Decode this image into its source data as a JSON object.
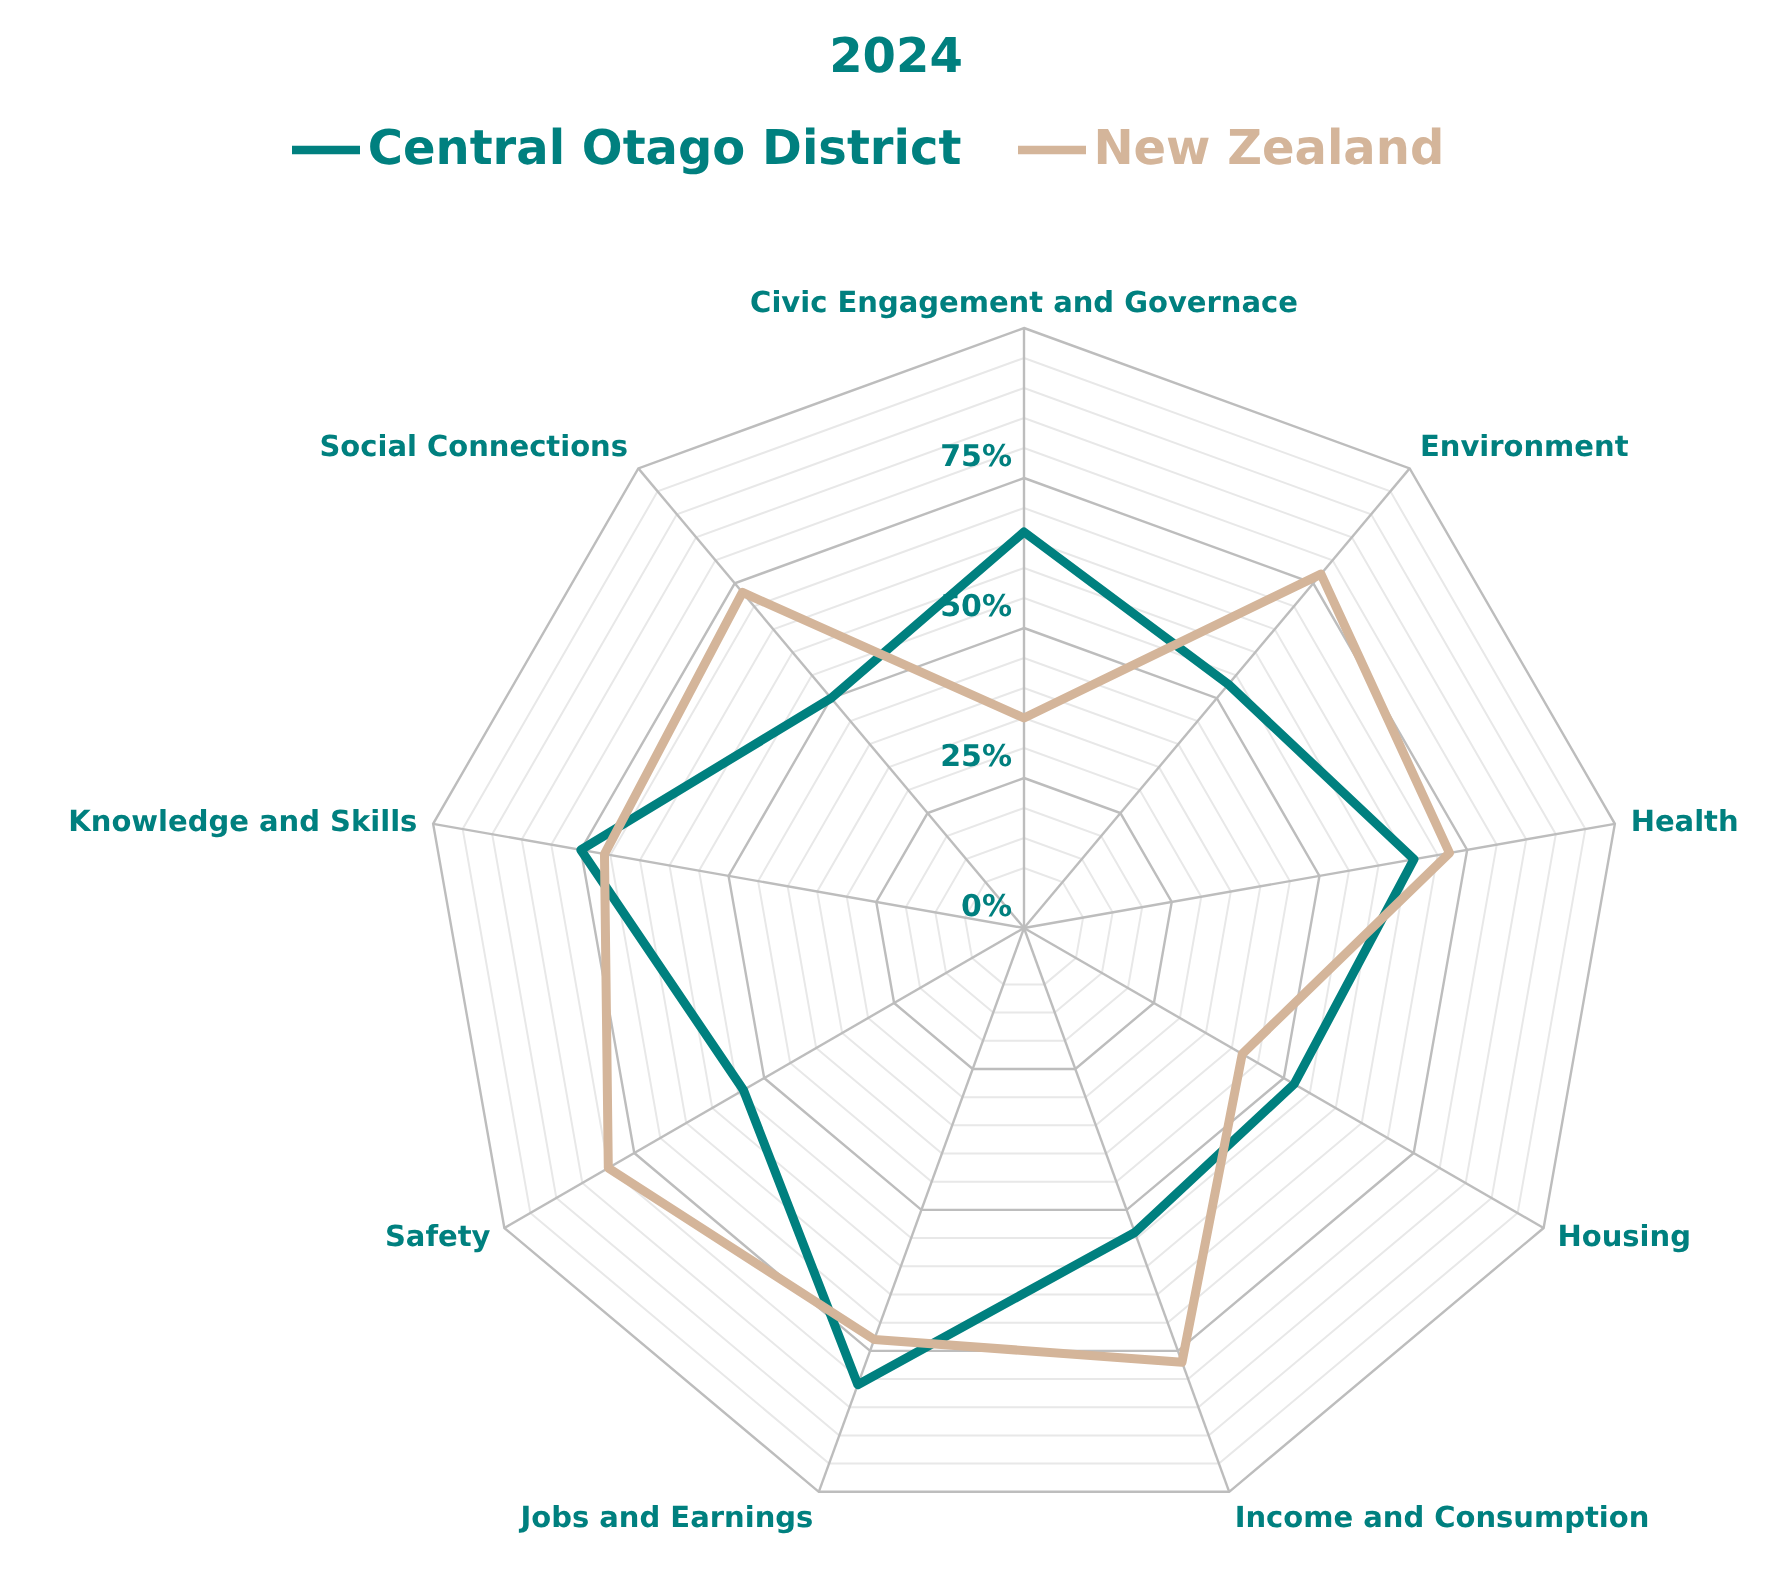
{
  "chart_data": {
    "type": "radar",
    "title": "2024",
    "categories": [
      "Civic Engagement and Governace",
      "Environment",
      "Health",
      "Housing",
      "Income and Consumption",
      "Jobs and Earnings",
      "Safety",
      "Knowledge and Skills",
      "Social Connections"
    ],
    "series": [
      {
        "name": "Central Otago District",
        "color": "#00807f",
        "values": [
          66,
          53,
          66,
          52,
          54,
          81,
          54,
          75,
          50
        ]
      },
      {
        "name": "New Zealand",
        "color": "#d4b59a",
        "values": [
          35,
          77,
          72,
          42,
          77,
          73,
          80,
          71,
          73
        ]
      }
    ],
    "ylim": [
      0,
      100
    ],
    "yticks": [
      {
        "value": 0,
        "label": "0%"
      },
      {
        "value": 25,
        "label": "25%"
      },
      {
        "value": 50,
        "label": "50%"
      },
      {
        "value": 75,
        "label": "75%"
      }
    ],
    "grid": true,
    "legend": "top",
    "marker": "none",
    "line_style": "solid"
  }
}
